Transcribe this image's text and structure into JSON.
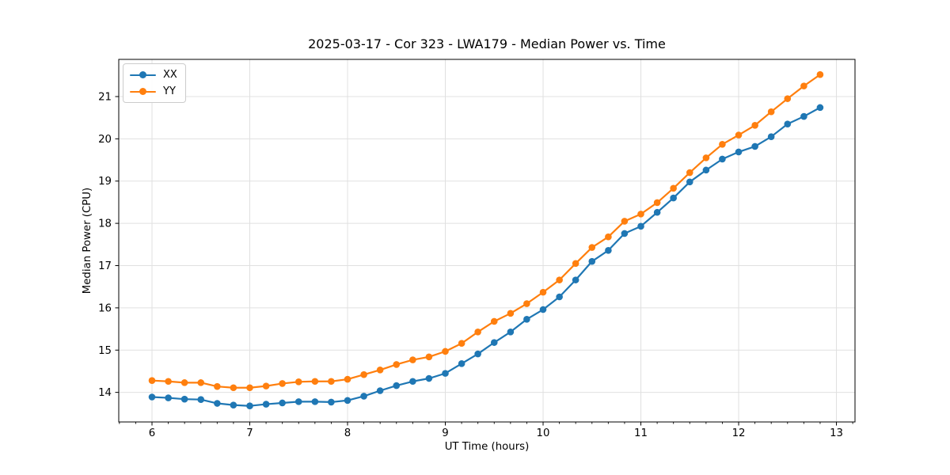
{
  "title": "2025-03-17 - Cor 323 - LWA179 - Median Power vs. Time",
  "chart_data": {
    "type": "line",
    "title": "2025-03-17 - Cor 323 - LWA179 - Median Power vs. Time",
    "xlabel": "UT Time (hours)",
    "ylabel": "Median Power (CPU)",
    "xlim": [
      5.66,
      13.19
    ],
    "ylim": [
      13.3,
      21.88
    ],
    "xticks": [
      6,
      7,
      8,
      9,
      10,
      11,
      12,
      13
    ],
    "yticks": [
      14,
      15,
      16,
      17,
      18,
      19,
      20,
      21
    ],
    "x_minor_tick_step": 0.1667,
    "grid": true,
    "grid_color": "#e0e0e0",
    "legend_position": "upper-left",
    "x": [
      6.0,
      6.167,
      6.333,
      6.5,
      6.667,
      6.833,
      7.0,
      7.167,
      7.333,
      7.5,
      7.667,
      7.833,
      8.0,
      8.167,
      8.333,
      8.5,
      8.667,
      8.833,
      9.0,
      9.167,
      9.333,
      9.5,
      9.667,
      9.833,
      10.0,
      10.167,
      10.333,
      10.5,
      10.667,
      10.833,
      11.0,
      11.167,
      11.333,
      11.5,
      11.667,
      11.833,
      12.0,
      12.167,
      12.333,
      12.5,
      12.667,
      12.833
    ],
    "series": [
      {
        "name": "XX",
        "color": "#1f77b4",
        "values": [
          13.89,
          13.87,
          13.84,
          13.83,
          13.74,
          13.7,
          13.68,
          13.72,
          13.75,
          13.78,
          13.78,
          13.77,
          13.81,
          13.91,
          14.04,
          14.16,
          14.26,
          14.33,
          14.45,
          14.68,
          14.91,
          15.18,
          15.43,
          15.73,
          15.96,
          16.26,
          16.66,
          17.1,
          17.36,
          17.76,
          17.93,
          18.26,
          18.6,
          18.98,
          19.26,
          19.52,
          19.69,
          19.82,
          20.05,
          20.35,
          20.53,
          20.74
        ]
      },
      {
        "name": "YY",
        "color": "#ff7f0e",
        "values": [
          14.28,
          14.26,
          14.23,
          14.23,
          14.14,
          14.11,
          14.11,
          14.15,
          14.21,
          14.25,
          14.26,
          14.26,
          14.31,
          14.42,
          14.53,
          14.66,
          14.77,
          14.84,
          14.97,
          15.16,
          15.43,
          15.68,
          15.87,
          16.1,
          16.37,
          16.66,
          17.05,
          17.43,
          17.68,
          18.05,
          18.22,
          18.49,
          18.83,
          19.2,
          19.55,
          19.87,
          20.09,
          20.32,
          20.64,
          20.95,
          21.25,
          21.52
        ]
      }
    ]
  }
}
